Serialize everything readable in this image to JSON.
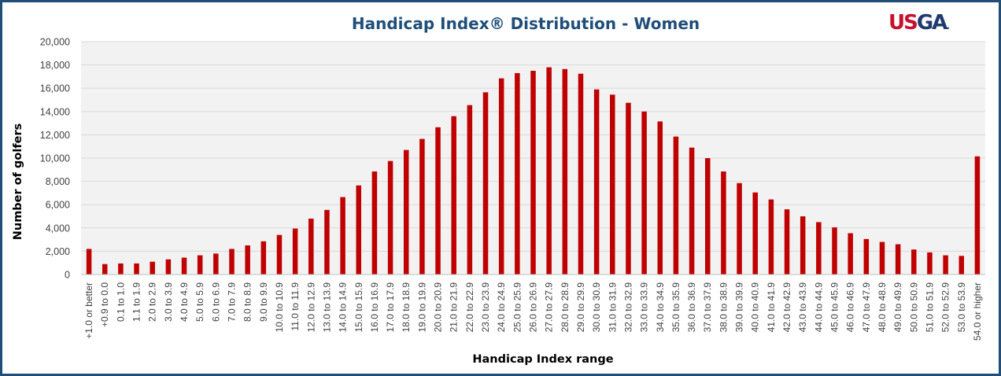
{
  "header": {
    "title": "Handicap Index® Distribution - Women",
    "logo_text": "USGA",
    "logo_us": "US",
    "logo_ga": "GA",
    "logo_dot": "."
  },
  "chart_data": {
    "type": "bar",
    "title": "Handicap Index® Distribution - Women",
    "xlabel": "Handicap Index range",
    "ylabel": "Number of golfers",
    "ylim": [
      0,
      20000
    ],
    "yticks": [
      0,
      2000,
      4000,
      6000,
      8000,
      10000,
      12000,
      14000,
      16000,
      18000,
      20000
    ],
    "ytick_labels": [
      "0",
      "2,000",
      "4,000",
      "6,000",
      "8,000",
      "10,000",
      "12,000",
      "14,000",
      "16,000",
      "18,000",
      "20,000"
    ],
    "grid": true,
    "bar_color": "#c00000",
    "plot_background": "#f2f2f2",
    "gridline_color": "#d9d9d9",
    "categories": [
      "+1.0 or better",
      "+0.9 to 0.0",
      "0.1 to 1.0",
      "1.1 to 1.9",
      "2.0 to 2.9",
      "3.0 to 3.9",
      "4.0 to 4.9",
      "5.0 to 5.9",
      "6.0 to 6.9",
      "7.0 to 7.9",
      "8.0 to 8.9",
      "9.0 to 9.9",
      "10.0 to 10.9",
      "11.0 to 11.9",
      "12.0 to 12.9",
      "13.0 to 13.9",
      "14.0 to 14.9",
      "15.0 to 15.9",
      "16.0 to 16.9",
      "17.0 to 17.9",
      "18.0 to 18.9",
      "19.0 to 19.9",
      "20.0 to 20.9",
      "21.0 to 21.9",
      "22.0 to 22.9",
      "23.0 to 23.9",
      "24.0 to 24.9",
      "25.0 to 25.9",
      "26.0 to 26.9",
      "27.0 to 27.9",
      "28.0 to 28.9",
      "29.0 to 29.9",
      "30.0 to 30.9",
      "31.0 to 31.9",
      "32.0 to 32.9",
      "33.0 to 33.9",
      "34.0 to 34.9",
      "35.0 to 35.9",
      "36.0 to 36.9",
      "37.0 to 37.9",
      "38.0 to 38.9",
      "39.0 to 39.9",
      "40.0 to 40.9",
      "41.0 to 41.9",
      "42.0 to 42.9",
      "43.0 to 43.9",
      "44.0 to 44.9",
      "45.0 to 45.9",
      "46.0 to 46.9",
      "47.0 to 47.9",
      "48.0 to 48.9",
      "49.0 to 49.9",
      "50.0 to 50.9",
      "51.0 to 51.9",
      "52.0 to 52.9",
      "53.0 to 53.9",
      "54.0 or higher"
    ],
    "values": [
      2200,
      900,
      950,
      950,
      1100,
      1300,
      1450,
      1650,
      1800,
      2200,
      2500,
      2850,
      3400,
      3950,
      4800,
      5550,
      6650,
      7650,
      8850,
      9750,
      10700,
      11650,
      12650,
      13600,
      14550,
      15650,
      16850,
      17300,
      17500,
      17800,
      17650,
      17250,
      15900,
      15450,
      14750,
      14000,
      13150,
      11850,
      10900,
      10000,
      8850,
      7850,
      7050,
      6450,
      5600,
      5000,
      4500,
      4050,
      3550,
      3050,
      2800,
      2600,
      2150,
      1900,
      1650,
      1600,
      10150
    ]
  }
}
